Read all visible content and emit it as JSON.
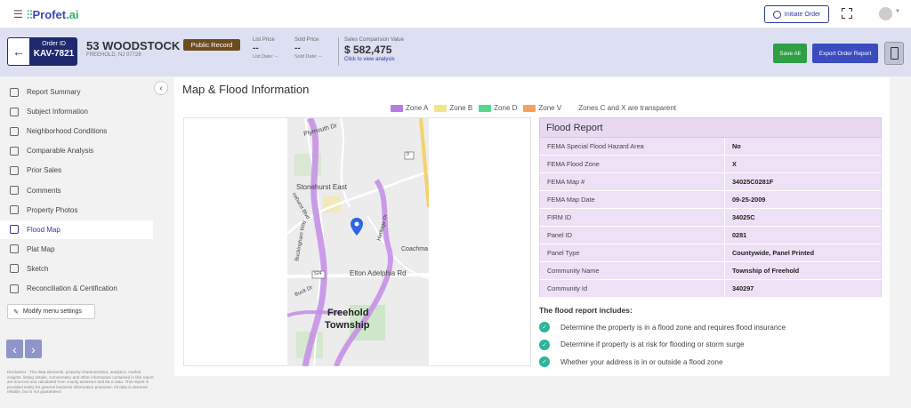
{
  "topbar": {
    "logo_prefix": "Profet",
    "logo_suffix": ".ai",
    "initiate_order": "Initiate Order"
  },
  "order": {
    "id_label": "Order ID",
    "id_value": "KAV-7821",
    "address": "53 WOODSTOCK PL",
    "address_sub": "FREEHOLD, NJ 07728",
    "record_badge": "Public Record",
    "list_price_label": "List Price",
    "list_price_value": "--",
    "list_date": "List Date: --",
    "sold_price_label": "Sold Price",
    "sold_price_value": "--",
    "sold_date": "Sold Date: --",
    "sales_label": "Sales Comparision Value",
    "sales_value": "$ 582,475",
    "sales_link": "Click to view analysis",
    "save_all": "Save All",
    "export": "Export Order Report"
  },
  "sidebar": {
    "items": [
      {
        "label": "Report Summary"
      },
      {
        "label": "Subject Information"
      },
      {
        "label": "Neighborhood Conditions"
      },
      {
        "label": "Comparable Analysis"
      },
      {
        "label": "Prior Sales"
      },
      {
        "label": "Comments"
      },
      {
        "label": "Property Photos"
      },
      {
        "label": "Flood Map"
      },
      {
        "label": "Plat Map"
      },
      {
        "label": "Sketch"
      },
      {
        "label": "Reconciliation & Certification"
      }
    ],
    "active_index": 7,
    "modify": "Modify menu settings",
    "disclaimer": "Disclaimer : The data elements, property characteristics, analytics, market insights, listing details, commentary and other information contained in this report are sourced and calculated from county assessor and MLS data. This report is provided solely for general business information purposes. All data is deemed reliable, but is not guaranteed"
  },
  "main": {
    "title": "Map & Flood Information",
    "legend": [
      {
        "label": "Zone A",
        "color": "#b57de0"
      },
      {
        "label": "Zone B",
        "color": "#f1e58a"
      },
      {
        "label": "Zone D",
        "color": "#55d98b"
      },
      {
        "label": "Zone V",
        "color": "#f7a25c"
      }
    ],
    "legend_note": "Zones C and X are transparent",
    "map_labels": {
      "plymouth": "Plymouth Dr",
      "stonehurst": "Stonehurst East",
      "hurst_blvd": "nehurst Blvd",
      "heritage": "Heritage Dr",
      "coachman": "Coachma",
      "buckingham": "Buckingham Way",
      "elton": "Elton Adelphia Rd",
      "route": "524",
      "route9": "9",
      "buck": "Buck Dr",
      "township1": "Freehold",
      "township2": "Township"
    },
    "flood_report": {
      "title": "Flood Report",
      "rows": [
        {
          "k": "FEMA Special Flood Hazard Area",
          "v": "No"
        },
        {
          "k": "FEMA Flood Zone",
          "v": "X"
        },
        {
          "k": "FEMA Map #",
          "v": "34025C0281F"
        },
        {
          "k": "FEMA Map Date",
          "v": "09-25-2009"
        },
        {
          "k": "FIRM ID",
          "v": "34025C"
        },
        {
          "k": "Panel ID",
          "v": "0281"
        },
        {
          "k": "Panel Type",
          "v": "Countywide, Panel Printed"
        },
        {
          "k": "Community Name",
          "v": "Township of Freehold"
        },
        {
          "k": "Community Id",
          "v": "340297"
        }
      ]
    },
    "includes_title": "The flood report includes:",
    "includes": [
      "Determine the property is in a flood zone and requires flood insurance",
      "Determine if property is at risk for flooding or storm surge",
      "Whether your address is in or outside a flood zone"
    ]
  }
}
